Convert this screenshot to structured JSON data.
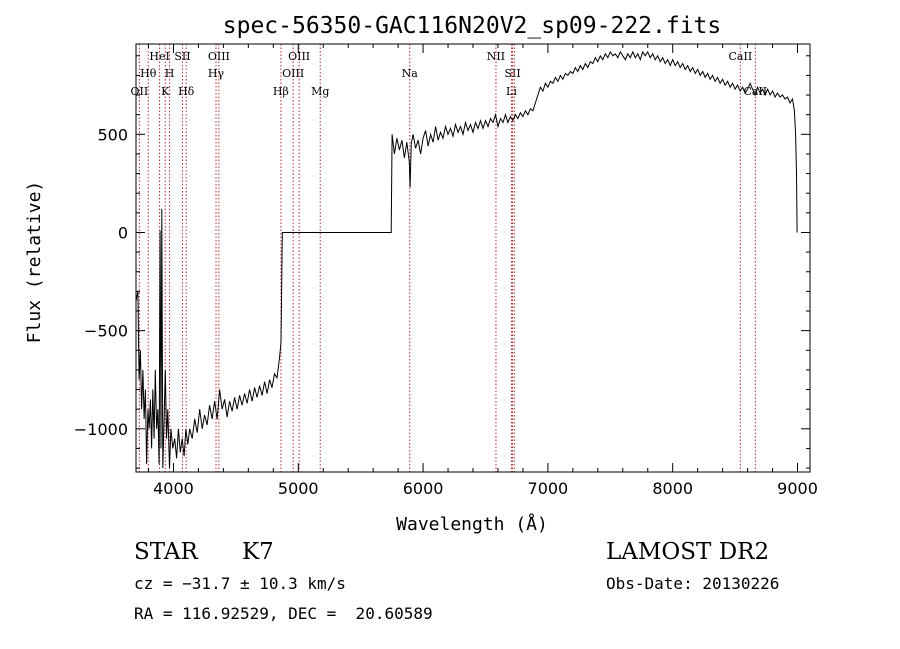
{
  "chart_data": {
    "type": "line",
    "title": "spec-56350-GAC116N20V2_sp09-222.fits",
    "xlabel": "Wavelength (Å)",
    "ylabel": "Flux (relative)",
    "xlim": [
      3700,
      9100
    ],
    "ylim": [
      -1220,
      960
    ],
    "x_ticks": [
      4000,
      5000,
      6000,
      7000,
      8000,
      9000
    ],
    "y_ticks": [
      -1000,
      -500,
      0,
      500
    ],
    "grid": false,
    "series": [
      {
        "values": [
          [
            3700,
            -350
          ],
          [
            3715,
            -300
          ],
          [
            3725,
            -750
          ],
          [
            3735,
            -600
          ],
          [
            3745,
            -900
          ],
          [
            3755,
            -700
          ],
          [
            3765,
            -950
          ],
          [
            3775,
            -800
          ],
          [
            3785,
            -1180
          ],
          [
            3795,
            -900
          ],
          [
            3805,
            -1000
          ],
          [
            3815,
            -850
          ],
          [
            3825,
            -1100
          ],
          [
            3835,
            -800
          ],
          [
            3845,
            -1050
          ],
          [
            3855,
            -700
          ],
          [
            3865,
            -1000
          ],
          [
            3875,
            -900
          ],
          [
            3885,
            -1180
          ],
          [
            3893,
            10
          ],
          [
            3900,
            -1100
          ],
          [
            3907,
            120
          ],
          [
            3915,
            -1200
          ],
          [
            3925,
            -950
          ],
          [
            3935,
            -700
          ],
          [
            3945,
            -1050
          ],
          [
            3955,
            -900
          ],
          [
            3968,
            -1200
          ],
          [
            3980,
            -1000
          ],
          [
            3995,
            -1100
          ],
          [
            4010,
            -1050
          ],
          [
            4025,
            -1150
          ],
          [
            4040,
            -1000
          ],
          [
            4055,
            -1120
          ],
          [
            4070,
            -1050
          ],
          [
            4085,
            -1140
          ],
          [
            4100,
            -1000
          ],
          [
            4115,
            -1080
          ],
          [
            4130,
            -1000
          ],
          [
            4150,
            -1050
          ],
          [
            4170,
            -950
          ],
          [
            4190,
            -1020
          ],
          [
            4210,
            -900
          ],
          [
            4230,
            -1000
          ],
          [
            4250,
            -930
          ],
          [
            4270,
            -980
          ],
          [
            4290,
            -880
          ],
          [
            4310,
            -950
          ],
          [
            4330,
            -860
          ],
          [
            4350,
            -950
          ],
          [
            4370,
            -800
          ],
          [
            4390,
            -900
          ],
          [
            4410,
            -850
          ],
          [
            4430,
            -940
          ],
          [
            4450,
            -860
          ],
          [
            4470,
            -910
          ],
          [
            4490,
            -840
          ],
          [
            4510,
            -900
          ],
          [
            4530,
            -830
          ],
          [
            4550,
            -880
          ],
          [
            4570,
            -820
          ],
          [
            4590,
            -870
          ],
          [
            4610,
            -800
          ],
          [
            4630,
            -860
          ],
          [
            4650,
            -790
          ],
          [
            4670,
            -840
          ],
          [
            4690,
            -780
          ],
          [
            4710,
            -830
          ],
          [
            4730,
            -760
          ],
          [
            4750,
            -820
          ],
          [
            4770,
            -750
          ],
          [
            4790,
            -790
          ],
          [
            4810,
            -720
          ],
          [
            4830,
            -740
          ],
          [
            4850,
            -640
          ],
          [
            4862,
            -560
          ],
          [
            4872,
            0
          ],
          [
            5000,
            0
          ],
          [
            5200,
            0
          ],
          [
            5400,
            0
          ],
          [
            5600,
            0
          ],
          [
            5745,
            0
          ],
          [
            5752,
            500
          ],
          [
            5770,
            400
          ],
          [
            5790,
            480
          ],
          [
            5810,
            420
          ],
          [
            5830,
            470
          ],
          [
            5850,
            380
          ],
          [
            5870,
            460
          ],
          [
            5890,
            360
          ],
          [
            5896,
            230
          ],
          [
            5905,
            450
          ],
          [
            5920,
            500
          ],
          [
            5940,
            430
          ],
          [
            5960,
            470
          ],
          [
            5980,
            400
          ],
          [
            6000,
            480
          ],
          [
            6020,
            520
          ],
          [
            6040,
            440
          ],
          [
            6060,
            500
          ],
          [
            6080,
            460
          ],
          [
            6100,
            540
          ],
          [
            6120,
            470
          ],
          [
            6140,
            510
          ],
          [
            6160,
            480
          ],
          [
            6180,
            540
          ],
          [
            6200,
            500
          ],
          [
            6220,
            530
          ],
          [
            6240,
            490
          ],
          [
            6260,
            550
          ],
          [
            6280,
            510
          ],
          [
            6300,
            540
          ],
          [
            6320,
            500
          ],
          [
            6340,
            560
          ],
          [
            6360,
            520
          ],
          [
            6380,
            550
          ],
          [
            6400,
            510
          ],
          [
            6420,
            560
          ],
          [
            6440,
            530
          ],
          [
            6460,
            570
          ],
          [
            6480,
            530
          ],
          [
            6500,
            570
          ],
          [
            6520,
            540
          ],
          [
            6540,
            580
          ],
          [
            6560,
            560
          ],
          [
            6580,
            600
          ],
          [
            6600,
            540
          ],
          [
            6620,
            580
          ],
          [
            6640,
            560
          ],
          [
            6660,
            600
          ],
          [
            6680,
            560
          ],
          [
            6700,
            590
          ],
          [
            6720,
            570
          ],
          [
            6740,
            600
          ],
          [
            6760,
            580
          ],
          [
            6780,
            610
          ],
          [
            6800,
            590
          ],
          [
            6820,
            620
          ],
          [
            6840,
            600
          ],
          [
            6860,
            630
          ],
          [
            6880,
            620
          ],
          [
            6900,
            660
          ],
          [
            6920,
            700
          ],
          [
            6940,
            740
          ],
          [
            6960,
            720
          ],
          [
            6980,
            760
          ],
          [
            7000,
            740
          ],
          [
            7020,
            770
          ],
          [
            7040,
            760
          ],
          [
            7060,
            790
          ],
          [
            7080,
            770
          ],
          [
            7100,
            800
          ],
          [
            7120,
            780
          ],
          [
            7140,
            810
          ],
          [
            7160,
            800
          ],
          [
            7180,
            820
          ],
          [
            7200,
            810
          ],
          [
            7220,
            840
          ],
          [
            7240,
            820
          ],
          [
            7260,
            850
          ],
          [
            7280,
            830
          ],
          [
            7300,
            860
          ],
          [
            7320,
            840
          ],
          [
            7340,
            870
          ],
          [
            7360,
            860
          ],
          [
            7380,
            890
          ],
          [
            7400,
            870
          ],
          [
            7420,
            900
          ],
          [
            7440,
            880
          ],
          [
            7460,
            910
          ],
          [
            7480,
            890
          ],
          [
            7500,
            920
          ],
          [
            7520,
            900
          ],
          [
            7540,
            910
          ],
          [
            7560,
            890
          ],
          [
            7580,
            920
          ],
          [
            7600,
            900
          ],
          [
            7620,
            880
          ],
          [
            7640,
            910
          ],
          [
            7660,
            890
          ],
          [
            7680,
            920
          ],
          [
            7700,
            890
          ],
          [
            7720,
            910
          ],
          [
            7740,
            880
          ],
          [
            7760,
            920
          ],
          [
            7780,
            900
          ],
          [
            7800,
            920
          ],
          [
            7820,
            890
          ],
          [
            7840,
            910
          ],
          [
            7860,
            880
          ],
          [
            7880,
            900
          ],
          [
            7900,
            870
          ],
          [
            7920,
            890
          ],
          [
            7940,
            860
          ],
          [
            7960,
            880
          ],
          [
            7980,
            850
          ],
          [
            8000,
            880
          ],
          [
            8020,
            850
          ],
          [
            8040,
            870
          ],
          [
            8060,
            840
          ],
          [
            8080,
            860
          ],
          [
            8100,
            830
          ],
          [
            8120,
            850
          ],
          [
            8140,
            820
          ],
          [
            8160,
            840
          ],
          [
            8180,
            810
          ],
          [
            8200,
            830
          ],
          [
            8220,
            800
          ],
          [
            8240,
            820
          ],
          [
            8260,
            790
          ],
          [
            8280,
            810
          ],
          [
            8300,
            780
          ],
          [
            8320,
            800
          ],
          [
            8340,
            770
          ],
          [
            8360,
            790
          ],
          [
            8380,
            760
          ],
          [
            8400,
            780
          ],
          [
            8420,
            750
          ],
          [
            8440,
            770
          ],
          [
            8460,
            740
          ],
          [
            8480,
            760
          ],
          [
            8500,
            730
          ],
          [
            8520,
            750
          ],
          [
            8540,
            720
          ],
          [
            8560,
            740
          ],
          [
            8580,
            710
          ],
          [
            8600,
            730
          ],
          [
            8620,
            760
          ],
          [
            8640,
            730
          ],
          [
            8660,
            700
          ],
          [
            8680,
            740
          ],
          [
            8700,
            710
          ],
          [
            8720,
            730
          ],
          [
            8740,
            700
          ],
          [
            8760,
            730
          ],
          [
            8780,
            700
          ],
          [
            8800,
            720
          ],
          [
            8820,
            690
          ],
          [
            8840,
            710
          ],
          [
            8860,
            690
          ],
          [
            8880,
            700
          ],
          [
            8900,
            680
          ],
          [
            8920,
            690
          ],
          [
            8940,
            660
          ],
          [
            8960,
            680
          ],
          [
            8975,
            620
          ],
          [
            8985,
            500
          ],
          [
            8992,
            300
          ],
          [
            8997,
            0
          ]
        ]
      }
    ],
    "lines": [
      {
        "x": 3727,
        "label": "OII",
        "row": 3
      },
      {
        "x": 3798,
        "label": "Hθ",
        "row": 2
      },
      {
        "x": 3889,
        "label": "HeI",
        "row": 1
      },
      {
        "x": 3934,
        "label": "K",
        "row": 3
      },
      {
        "x": 3969,
        "label": "H",
        "row": 2
      },
      {
        "x": 4072,
        "label": "SII",
        "row": 1
      },
      {
        "x": 4102,
        "label": "Hδ",
        "row": 3
      },
      {
        "x": 4341,
        "label": "Hγ",
        "row": 2
      },
      {
        "x": 4364,
        "label": "OIII",
        "row": 1
      },
      {
        "x": 4861,
        "label": "Hβ",
        "row": 3
      },
      {
        "x": 4959,
        "label": "OIII",
        "row": 2
      },
      {
        "x": 5007,
        "label": "OIII",
        "row": 1
      },
      {
        "x": 5176,
        "label": "Mg",
        "row": 3
      },
      {
        "x": 5893,
        "label": "Na",
        "row": 2
      },
      {
        "x": 6584,
        "label": "NII",
        "row": 1
      },
      {
        "x": 6708,
        "label": "Li",
        "row": 3
      },
      {
        "x": 6717,
        "label": "SII",
        "row": 2
      },
      {
        "x": 6731,
        "label": "",
        "row": 0
      },
      {
        "x": 8542,
        "label": "CaII",
        "row": 1
      },
      {
        "x": 8662,
        "label": "CaII",
        "row": 3
      }
    ]
  },
  "info": {
    "object_class": "STAR",
    "subclass": "K7",
    "survey": "LAMOST DR2",
    "redshift": "cz = −31.7 ± 10.3 km/s",
    "obs_date": "Obs-Date: 20130226",
    "coords": "RA = 116.92529, DEC =  20.60589"
  },
  "colors": {
    "spectrum": "#000000",
    "line_markers": "#b03030",
    "axes": "#000000"
  }
}
